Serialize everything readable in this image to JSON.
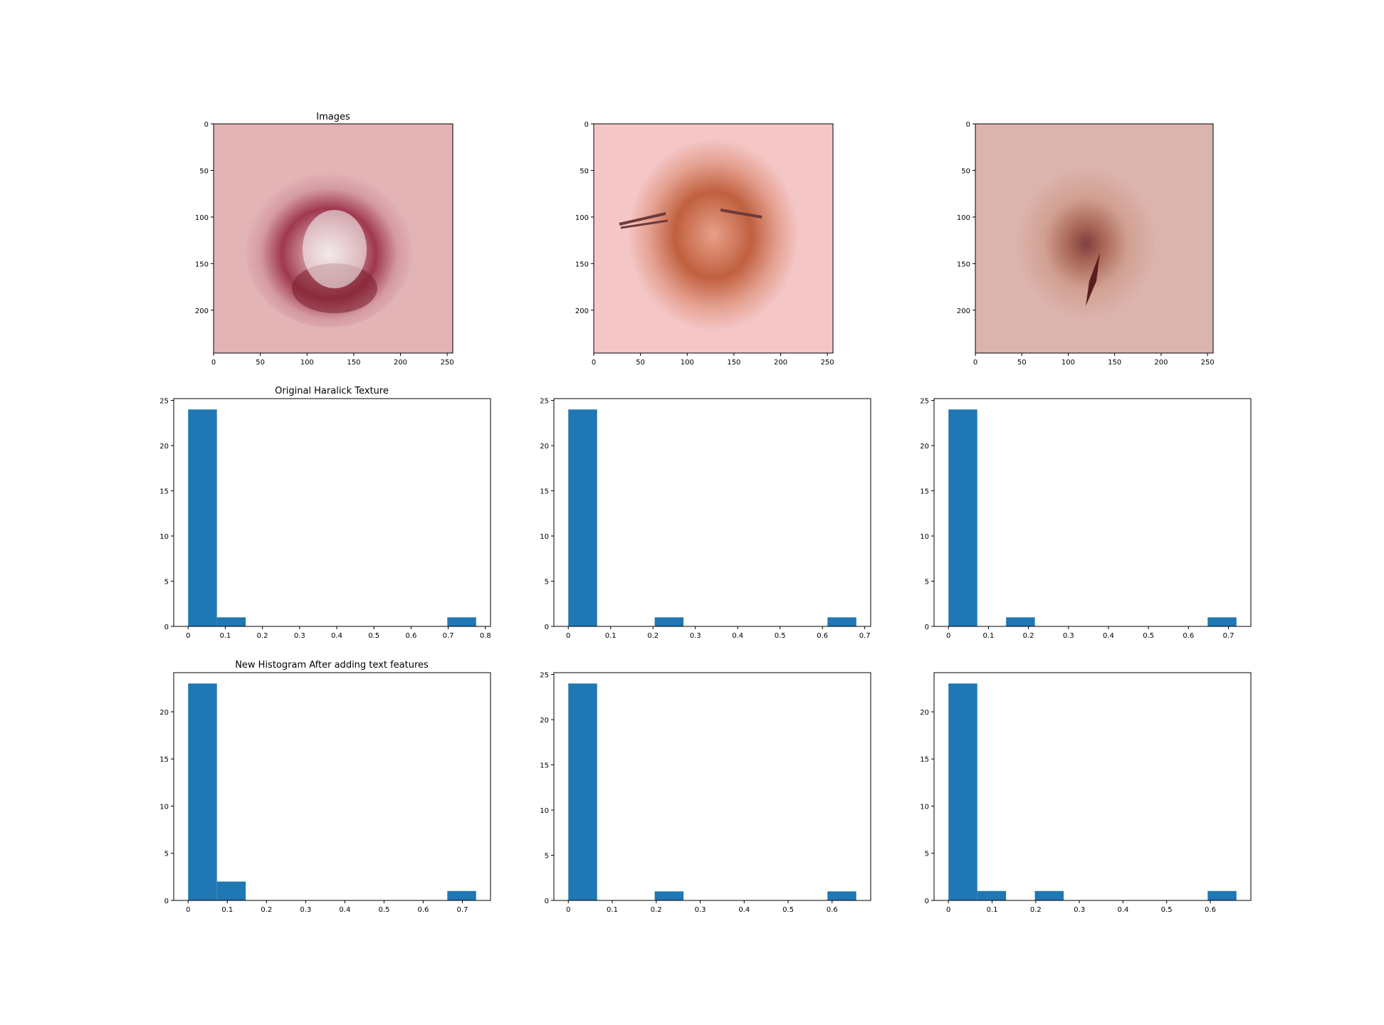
{
  "figure": {
    "titles": {
      "images": "Images",
      "original": "Original Haralick Texture",
      "new": "New Histogram After adding text features"
    }
  },
  "colors": {
    "bar": "#1f77b4",
    "axis": "#000000",
    "background": "#ffffff"
  },
  "images": [
    {
      "description_colors": {
        "skin": "#e3b4b5",
        "lesion": "#a0384f",
        "core": "#f2e6e6"
      },
      "x_ticks": [
        0,
        50,
        100,
        150,
        200,
        250
      ],
      "y_ticks": [
        0,
        50,
        100,
        150,
        200
      ],
      "xlim": [
        0,
        256
      ],
      "ylim": [
        246,
        0
      ]
    },
    {
      "description_colors": {
        "skin": "#f4c6c6",
        "lesion": "#c0603f",
        "core": "#e8a08a"
      },
      "x_ticks": [
        0,
        50,
        100,
        150,
        200,
        250
      ],
      "y_ticks": [
        0,
        50,
        100,
        150,
        200
      ],
      "xlim": [
        0,
        256
      ],
      "ylim": [
        246,
        0
      ]
    },
    {
      "description_colors": {
        "skin": "#dcb4ae",
        "lesion": "#a05a48",
        "core": "#6e2a2a"
      },
      "x_ticks": [
        0,
        50,
        100,
        150,
        200,
        250
      ],
      "y_ticks": [
        0,
        50,
        100,
        150,
        200
      ],
      "xlim": [
        0,
        256
      ],
      "ylim": [
        246,
        0
      ]
    }
  ],
  "chart_data": [
    {
      "type": "bar",
      "row": "original",
      "col": 0,
      "title": "Original Haralick Texture",
      "bin_width": 0.0775,
      "bars": [
        {
          "x": 0.0,
          "value": 24
        },
        {
          "x": 0.0775,
          "value": 1
        },
        {
          "x": 0.6975,
          "value": 1
        }
      ],
      "xlim": [
        -0.0388,
        0.8138
      ],
      "ylim": [
        0,
        25.2
      ],
      "x_ticks": [
        0.0,
        0.1,
        0.2,
        0.3,
        0.4,
        0.5,
        0.6,
        0.7,
        0.8
      ],
      "y_ticks": [
        0,
        5,
        10,
        15,
        20,
        25
      ]
    },
    {
      "type": "bar",
      "row": "original",
      "col": 1,
      "title": "",
      "bin_width": 0.068,
      "bars": [
        {
          "x": 0.0,
          "value": 24
        },
        {
          "x": 0.204,
          "value": 1
        },
        {
          "x": 0.612,
          "value": 1
        }
      ],
      "xlim": [
        -0.034,
        0.714
      ],
      "ylim": [
        0,
        25.2
      ],
      "x_ticks": [
        0.0,
        0.1,
        0.2,
        0.3,
        0.4,
        0.5,
        0.6,
        0.7
      ],
      "y_ticks": [
        0,
        5,
        10,
        15,
        20,
        25
      ]
    },
    {
      "type": "bar",
      "row": "original",
      "col": 2,
      "title": "",
      "bin_width": 0.072,
      "bars": [
        {
          "x": 0.0,
          "value": 24
        },
        {
          "x": 0.144,
          "value": 1
        },
        {
          "x": 0.648,
          "value": 1
        }
      ],
      "xlim": [
        -0.036,
        0.756
      ],
      "ylim": [
        0,
        25.2
      ],
      "x_ticks": [
        0.0,
        0.1,
        0.2,
        0.3,
        0.4,
        0.5,
        0.6,
        0.7
      ],
      "y_ticks": [
        0,
        5,
        10,
        15,
        20,
        25
      ]
    },
    {
      "type": "bar",
      "row": "new",
      "col": 0,
      "title": "New Histogram After adding text features",
      "bin_width": 0.0735,
      "bars": [
        {
          "x": 0.0,
          "value": 23
        },
        {
          "x": 0.0735,
          "value": 2
        },
        {
          "x": 0.6615,
          "value": 1
        }
      ],
      "xlim": [
        -0.0368,
        0.7718
      ],
      "ylim": [
        0,
        24.15
      ],
      "x_ticks": [
        0.0,
        0.1,
        0.2,
        0.3,
        0.4,
        0.5,
        0.6,
        0.7
      ],
      "y_ticks": [
        0,
        5,
        10,
        15,
        20
      ]
    },
    {
      "type": "bar",
      "row": "new",
      "col": 1,
      "title": "",
      "bin_width": 0.0655,
      "bars": [
        {
          "x": 0.0,
          "value": 24
        },
        {
          "x": 0.1965,
          "value": 1
        },
        {
          "x": 0.5895,
          "value": 1
        }
      ],
      "xlim": [
        -0.0328,
        0.6878
      ],
      "ylim": [
        0,
        25.2
      ],
      "x_ticks": [
        0.0,
        0.1,
        0.2,
        0.3,
        0.4,
        0.5,
        0.6
      ],
      "y_ticks": [
        0,
        5,
        10,
        15,
        20,
        25
      ]
    },
    {
      "type": "bar",
      "row": "new",
      "col": 2,
      "title": "",
      "bin_width": 0.066,
      "bars": [
        {
          "x": 0.0,
          "value": 23
        },
        {
          "x": 0.066,
          "value": 1
        },
        {
          "x": 0.198,
          "value": 1
        },
        {
          "x": 0.594,
          "value": 1
        }
      ],
      "xlim": [
        -0.033,
        0.693
      ],
      "ylim": [
        0,
        24.15
      ],
      "x_ticks": [
        0.0,
        0.1,
        0.2,
        0.3,
        0.4,
        0.5,
        0.6
      ],
      "y_ticks": [
        0,
        5,
        10,
        15,
        20
      ]
    }
  ]
}
